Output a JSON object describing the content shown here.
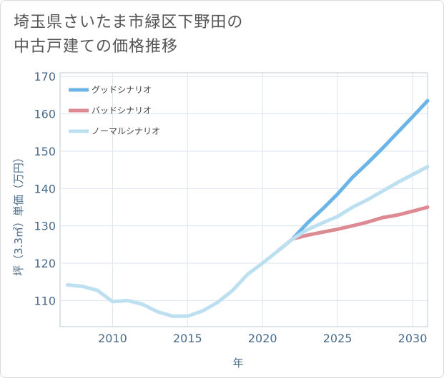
{
  "title": {
    "line1": "埼玉県さいたま市緑区下野田の",
    "line2": "中古戸建ての価格推移"
  },
  "chart_data": {
    "type": "line",
    "xlabel": "年",
    "ylabel": "坪（3.3㎡）単価（万円）",
    "xlim": [
      2006.5,
      2031
    ],
    "ylim": [
      103,
      171
    ],
    "xticks": [
      2010,
      2015,
      2020,
      2025,
      2030
    ],
    "yticks": [
      110,
      120,
      130,
      140,
      150,
      160,
      170
    ],
    "grid": true,
    "legend_position": "top-left",
    "series": [
      {
        "name": "グッドシナリオ",
        "color": "#6ab4e8",
        "points": [
          [
            2021,
            123.2
          ],
          [
            2022,
            126.5
          ],
          [
            2023,
            130.8
          ],
          [
            2024,
            134.5
          ],
          [
            2025,
            138.5
          ],
          [
            2026,
            143.0
          ],
          [
            2027,
            146.8
          ],
          [
            2028,
            150.8
          ],
          [
            2029,
            155.0
          ],
          [
            2030,
            159.2
          ],
          [
            2031,
            163.5
          ]
        ]
      },
      {
        "name": "バッドシナリオ",
        "color": "#de8a92",
        "points": [
          [
            2021,
            123.2
          ],
          [
            2022,
            126.5
          ],
          [
            2023,
            127.5
          ],
          [
            2024,
            128.3
          ],
          [
            2025,
            129.1
          ],
          [
            2026,
            130.0
          ],
          [
            2027,
            131.0
          ],
          [
            2028,
            132.2
          ],
          [
            2029,
            132.9
          ],
          [
            2030,
            133.9
          ],
          [
            2031,
            135.0
          ]
        ]
      },
      {
        "name": "ノーマルシナリオ",
        "color": "#bde0f0",
        "points": [
          [
            2007,
            114.2
          ],
          [
            2008,
            113.8
          ],
          [
            2009,
            112.7
          ],
          [
            2010,
            109.7
          ],
          [
            2011,
            110.0
          ],
          [
            2012,
            109.0
          ],
          [
            2013,
            107.0
          ],
          [
            2014,
            105.8
          ],
          [
            2015,
            105.8
          ],
          [
            2016,
            107.2
          ],
          [
            2017,
            109.5
          ],
          [
            2018,
            112.7
          ],
          [
            2019,
            117.0
          ],
          [
            2020,
            120.0
          ],
          [
            2021,
            123.2
          ],
          [
            2022,
            126.5
          ],
          [
            2023,
            129.0
          ],
          [
            2024,
            130.8
          ],
          [
            2025,
            132.5
          ],
          [
            2026,
            135.0
          ],
          [
            2027,
            137.0
          ],
          [
            2028,
            139.3
          ],
          [
            2029,
            141.6
          ],
          [
            2030,
            143.7
          ],
          [
            2031,
            145.8
          ]
        ]
      }
    ]
  }
}
